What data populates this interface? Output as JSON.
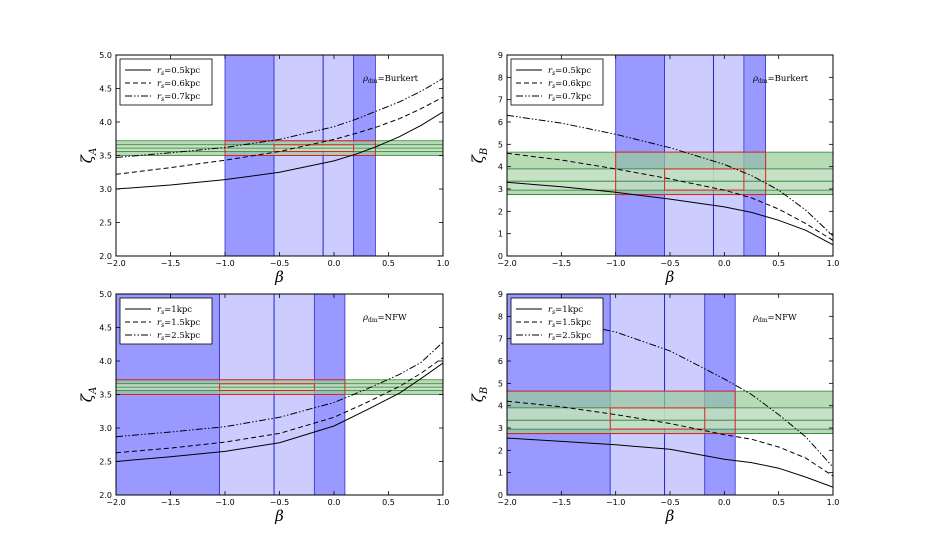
{
  "chart_data": [
    {
      "type": "line",
      "xlabel": "β",
      "ylabel": "ζ_A",
      "ylabel_main": "ζ",
      "ylabel_sub": "A",
      "xlim": [
        -2.0,
        1.0
      ],
      "ylim": [
        2.0,
        5.0
      ],
      "xticks": [
        "−2.0",
        "−1.5",
        "−1.0",
        "−0.5",
        "0.0",
        "0.5",
        "1.0"
      ],
      "xtick_values": [
        -2.0,
        -1.5,
        -1.0,
        -0.5,
        0.0,
        0.5,
        1.0
      ],
      "yticks": [
        "2.0",
        "2.5",
        "3.0",
        "3.5",
        "4.0",
        "4.5",
        "5.0"
      ],
      "ytick_values": [
        2.0,
        2.5,
        3.0,
        3.5,
        4.0,
        4.5,
        5.0
      ],
      "annotation": "ρ_dm = Burkert",
      "annotation_rho": "ρ",
      "annotation_sub": "dm",
      "annotation_rest": "=Burkert",
      "legend": [
        {
          "r": "r",
          "s": "s",
          "label": "=0.5kpc",
          "style": "solid"
        },
        {
          "r": "r",
          "s": "s",
          "label": "=0.6kpc",
          "style": "dashed"
        },
        {
          "r": "r",
          "s": "s",
          "label": "=0.7kpc",
          "style": "dashdot"
        }
      ],
      "vbands": [
        {
          "x": [
            -1.0,
            -0.55
          ],
          "color": "#9999ff"
        },
        {
          "x": [
            -0.55,
            0.18
          ],
          "color": "#ccccff"
        },
        {
          "x": [
            0.18,
            0.38
          ],
          "color": "#9999ff"
        }
      ],
      "vlines": [
        -0.1
      ],
      "hbands": [
        {
          "y": [
            3.5,
            3.72
          ],
          "color": "#99cc99"
        },
        {
          "y": [
            3.56,
            3.66
          ],
          "color": "#cce5cc"
        }
      ],
      "hlines": [
        3.5,
        3.56,
        3.61,
        3.66,
        3.72
      ],
      "rect": {
        "x": [
          -1.0,
          0.38
        ],
        "y": [
          3.5,
          3.72
        ],
        "mid_x": [
          -0.55,
          0.18
        ],
        "mid_y": [
          3.56,
          3.66
        ]
      },
      "series": [
        {
          "name": "r_s=0.5kpc",
          "style": "solid",
          "x": [
            -2.0,
            -1.5,
            -1.0,
            -0.5,
            0.0,
            0.2,
            0.4,
            0.6,
            0.8,
            1.0
          ],
          "y": [
            3.0,
            3.06,
            3.14,
            3.25,
            3.42,
            3.52,
            3.64,
            3.78,
            3.95,
            4.15
          ]
        },
        {
          "name": "r_s=0.6kpc",
          "style": "dashed",
          "x": [
            -2.0,
            -1.5,
            -1.0,
            -0.5,
            0.0,
            0.2,
            0.4,
            0.6,
            0.8,
            1.0
          ],
          "y": [
            3.22,
            3.32,
            3.43,
            3.56,
            3.74,
            3.83,
            3.93,
            4.05,
            4.2,
            4.37
          ]
        },
        {
          "name": "r_s=0.7kpc",
          "style": "dashdot",
          "x": [
            -2.0,
            -1.5,
            -1.0,
            -0.5,
            0.0,
            0.2,
            0.4,
            0.6,
            0.8,
            1.0
          ],
          "y": [
            3.47,
            3.54,
            3.62,
            3.74,
            3.93,
            4.04,
            4.17,
            4.3,
            4.46,
            4.65
          ]
        }
      ]
    },
    {
      "type": "line",
      "xlabel": "β",
      "ylabel": "ζ_B",
      "ylabel_main": "ζ",
      "ylabel_sub": "B",
      "xlim": [
        -2.0,
        1.0
      ],
      "ylim": [
        0,
        9
      ],
      "xticks": [
        "−2.0",
        "−1.5",
        "−1.0",
        "−0.5",
        "0.0",
        "0.5",
        "1.0"
      ],
      "xtick_values": [
        -2.0,
        -1.5,
        -1.0,
        -0.5,
        0.0,
        0.5,
        1.0
      ],
      "yticks": [
        "0",
        "1",
        "2",
        "3",
        "4",
        "5",
        "6",
        "7",
        "8",
        "9"
      ],
      "ytick_values": [
        0,
        1,
        2,
        3,
        4,
        5,
        6,
        7,
        8,
        9
      ],
      "annotation": "ρ_dm = Burkert",
      "annotation_rho": "ρ",
      "annotation_sub": "dm",
      "annotation_rest": "=Burkert",
      "legend": [
        {
          "r": "r",
          "s": "s",
          "label": "=0.5kpc",
          "style": "solid"
        },
        {
          "r": "r",
          "s": "s",
          "label": "=0.6kpc",
          "style": "dashed"
        },
        {
          "r": "r",
          "s": "s",
          "label": "=0.7kpc",
          "style": "dashdot"
        }
      ],
      "vbands": [
        {
          "x": [
            -1.0,
            -0.55
          ],
          "color": "#9999ff"
        },
        {
          "x": [
            -0.55,
            0.18
          ],
          "color": "#ccccff"
        },
        {
          "x": [
            0.18,
            0.38
          ],
          "color": "#9999ff"
        }
      ],
      "vlines": [
        -0.1
      ],
      "hbands": [
        {
          "y": [
            2.75,
            4.65
          ],
          "color": "#99cc99"
        },
        {
          "y": [
            2.95,
            3.9
          ],
          "color": "#cce5cc"
        }
      ],
      "hlines": [
        2.75,
        2.95,
        3.35,
        3.9,
        4.65
      ],
      "rect": {
        "x": [
          -1.0,
          0.38
        ],
        "y": [
          2.75,
          4.65
        ],
        "mid_x": [
          -0.55,
          0.18
        ],
        "mid_y": [
          2.95,
          3.9
        ]
      },
      "series": [
        {
          "name": "r_s=0.5kpc",
          "style": "solid",
          "x": [
            -2.0,
            -1.5,
            -1.0,
            -0.5,
            0.0,
            0.25,
            0.5,
            0.75,
            1.0
          ],
          "y": [
            3.3,
            3.1,
            2.85,
            2.55,
            2.2,
            1.95,
            1.6,
            1.15,
            0.5
          ]
        },
        {
          "name": "r_s=0.6kpc",
          "style": "dashed",
          "x": [
            -2.0,
            -1.5,
            -1.0,
            -0.5,
            0.0,
            0.25,
            0.5,
            0.75,
            1.0
          ],
          "y": [
            4.6,
            4.3,
            3.9,
            3.45,
            2.95,
            2.6,
            2.1,
            1.45,
            0.7
          ]
        },
        {
          "name": "r_s=0.7kpc",
          "style": "dashdot",
          "x": [
            -2.0,
            -1.5,
            -1.0,
            -0.5,
            0.0,
            0.25,
            0.5,
            0.75,
            1.0
          ],
          "y": [
            6.3,
            5.95,
            5.45,
            4.85,
            4.1,
            3.6,
            2.95,
            2.05,
            0.9
          ]
        }
      ]
    },
    {
      "type": "line",
      "xlabel": "β",
      "ylabel": "ζ_A",
      "ylabel_main": "ζ",
      "ylabel_sub": "A",
      "xlim": [
        -2.0,
        1.0
      ],
      "ylim": [
        2.0,
        5.0
      ],
      "xticks": [
        "−2.0",
        "−1.5",
        "−1.0",
        "−0.5",
        "0.0",
        "0.5",
        "1.0"
      ],
      "xtick_values": [
        -2.0,
        -1.5,
        -1.0,
        -0.5,
        0.0,
        0.5,
        1.0
      ],
      "yticks": [
        "2.0",
        "2.5",
        "3.0",
        "3.5",
        "4.0",
        "4.5",
        "5.0"
      ],
      "ytick_values": [
        2.0,
        2.5,
        3.0,
        3.5,
        4.0,
        4.5,
        5.0
      ],
      "annotation": "ρ_dm = NFW",
      "annotation_rho": "ρ",
      "annotation_sub": "dm",
      "annotation_rest": "=NFW",
      "legend": [
        {
          "r": "r",
          "s": "s",
          "label": "=1kpc",
          "style": "solid"
        },
        {
          "r": "r",
          "s": "s",
          "label": "=1.5kpc",
          "style": "dashed"
        },
        {
          "r": "r",
          "s": "s",
          "label": "=2.5kpc",
          "style": "dashdot"
        }
      ],
      "vbands": [
        {
          "x": [
            -2.0,
            -1.05
          ],
          "color": "#9999ff"
        },
        {
          "x": [
            -1.05,
            -0.18
          ],
          "color": "#ccccff"
        },
        {
          "x": [
            -0.18,
            0.1
          ],
          "color": "#9999ff"
        }
      ],
      "vlines": [
        -0.55
      ],
      "hbands": [
        {
          "y": [
            3.5,
            3.72
          ],
          "color": "#99cc99"
        },
        {
          "y": [
            3.56,
            3.66
          ],
          "color": "#cce5cc"
        }
      ],
      "hlines": [
        3.5,
        3.56,
        3.61,
        3.66,
        3.72
      ],
      "rect": {
        "x": [
          -2.0,
          0.1
        ],
        "y": [
          3.5,
          3.72
        ],
        "mid_x": [
          -1.05,
          -0.18
        ],
        "mid_y": [
          3.56,
          3.66
        ]
      },
      "series": [
        {
          "name": "r_s=1kpc",
          "style": "solid",
          "x": [
            -2.0,
            -1.5,
            -1.0,
            -0.5,
            0.0,
            0.3,
            0.6,
            0.8,
            1.0
          ],
          "y": [
            2.5,
            2.57,
            2.65,
            2.78,
            3.03,
            3.27,
            3.52,
            3.74,
            3.97
          ]
        },
        {
          "name": "r_s=1.5kpc",
          "style": "dashed",
          "x": [
            -2.0,
            -1.5,
            -1.0,
            -0.5,
            0.0,
            0.3,
            0.6,
            0.8,
            1.0
          ],
          "y": [
            2.63,
            2.7,
            2.79,
            2.92,
            3.16,
            3.38,
            3.62,
            3.82,
            4.05
          ]
        },
        {
          "name": "r_s=2.5kpc",
          "style": "dashdot",
          "x": [
            -2.0,
            -1.5,
            -1.0,
            -0.5,
            0.0,
            0.3,
            0.6,
            0.8,
            1.0
          ],
          "y": [
            2.87,
            2.94,
            3.02,
            3.16,
            3.38,
            3.58,
            3.8,
            3.98,
            4.28
          ]
        }
      ]
    },
    {
      "type": "line",
      "xlabel": "β",
      "ylabel": "ζ_B",
      "ylabel_main": "ζ",
      "ylabel_sub": "B",
      "xlim": [
        -2.0,
        1.0
      ],
      "ylim": [
        0,
        9
      ],
      "xticks": [
        "−2.0",
        "−1.5",
        "−1.0",
        "−0.5",
        "0.0",
        "0.5",
        "1.0"
      ],
      "xtick_values": [
        -2.0,
        -1.5,
        -1.0,
        -0.5,
        0.0,
        0.5,
        1.0
      ],
      "yticks": [
        "0",
        "1",
        "2",
        "3",
        "4",
        "5",
        "6",
        "7",
        "8",
        "9"
      ],
      "ytick_values": [
        0,
        1,
        2,
        3,
        4,
        5,
        6,
        7,
        8,
        9
      ],
      "annotation": "ρ_dm = NFW",
      "annotation_rho": "ρ",
      "annotation_sub": "dm",
      "annotation_rest": "=NFW",
      "legend": [
        {
          "r": "r",
          "s": "s",
          "label": "=1kpc",
          "style": "solid"
        },
        {
          "r": "r",
          "s": "s",
          "label": "=1.5kpc",
          "style": "dashed"
        },
        {
          "r": "r",
          "s": "s",
          "label": "=2.5kpc",
          "style": "dashdot"
        }
      ],
      "vbands": [
        {
          "x": [
            -2.0,
            -1.05
          ],
          "color": "#9999ff"
        },
        {
          "x": [
            -1.05,
            -0.18
          ],
          "color": "#ccccff"
        },
        {
          "x": [
            -0.18,
            0.1
          ],
          "color": "#9999ff"
        }
      ],
      "vlines": [
        -0.55
      ],
      "hbands": [
        {
          "y": [
            2.75,
            4.65
          ],
          "color": "#99cc99"
        },
        {
          "y": [
            2.95,
            3.9
          ],
          "color": "#cce5cc"
        }
      ],
      "hlines": [
        2.75,
        2.95,
        3.35,
        3.9,
        4.65
      ],
      "rect": {
        "x": [
          -2.0,
          0.1
        ],
        "y": [
          2.75,
          4.65
        ],
        "mid_x": [
          -1.05,
          -0.18
        ],
        "mid_y": [
          2.95,
          3.9
        ]
      },
      "series": [
        {
          "name": "r_s=1kpc",
          "style": "solid",
          "x": [
            -2.0,
            -1.5,
            -1.0,
            -0.5,
            0.0,
            0.25,
            0.5,
            0.75,
            1.0
          ],
          "y": [
            2.55,
            2.4,
            2.25,
            2.05,
            1.6,
            1.45,
            1.2,
            0.8,
            0.35
          ]
        },
        {
          "name": "r_s=1.5kpc",
          "style": "dashed",
          "x": [
            -2.0,
            -1.5,
            -1.0,
            -0.5,
            0.0,
            0.25,
            0.5,
            0.75,
            1.0
          ],
          "y": [
            4.2,
            3.95,
            3.6,
            3.2,
            2.7,
            2.5,
            2.15,
            1.65,
            0.85
          ]
        },
        {
          "name": "r_s=2.5kpc",
          "style": "dashdot",
          "x": [
            -1.4,
            -1.0,
            -0.5,
            0.0,
            0.25,
            0.5,
            0.75,
            1.0
          ],
          "y": [
            7.7,
            7.3,
            6.45,
            5.2,
            4.5,
            3.6,
            2.6,
            1.25
          ]
        }
      ]
    }
  ]
}
